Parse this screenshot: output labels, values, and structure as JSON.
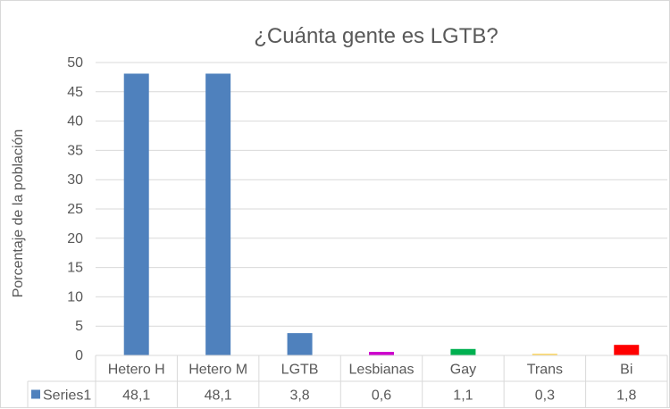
{
  "chart_data": {
    "type": "bar",
    "title": "¿Cuánta gente es LGTB?",
    "ylabel": "Porcentaje de la población",
    "xlabel": "",
    "ylim": [
      0,
      50
    ],
    "yticks": [
      0,
      5,
      10,
      15,
      20,
      25,
      30,
      35,
      40,
      45,
      50
    ],
    "ytick_labels": [
      "0",
      "5",
      "10",
      "15",
      "20",
      "25",
      "30",
      "35",
      "40",
      "45",
      "50"
    ],
    "grid": true,
    "categories": [
      "Hetero H",
      "Hetero M",
      "LGTB",
      "Lesbianas",
      "Gay",
      "Trans",
      "Bi"
    ],
    "series": [
      {
        "name": "Series1",
        "values": [
          48.1,
          48.1,
          3.8,
          0.6,
          1.1,
          0.3,
          1.8
        ],
        "value_labels": [
          "48,1",
          "48,1",
          "3,8",
          "0,6",
          "1,1",
          "0,3",
          "1,8"
        ],
        "colors": [
          "#4f81bd",
          "#4f81bd",
          "#4f81bd",
          "#cc00cc",
          "#00b050",
          "#ffd966",
          "#ff0000"
        ],
        "legend_color": "#4f81bd"
      }
    ],
    "legend": "data-table"
  }
}
